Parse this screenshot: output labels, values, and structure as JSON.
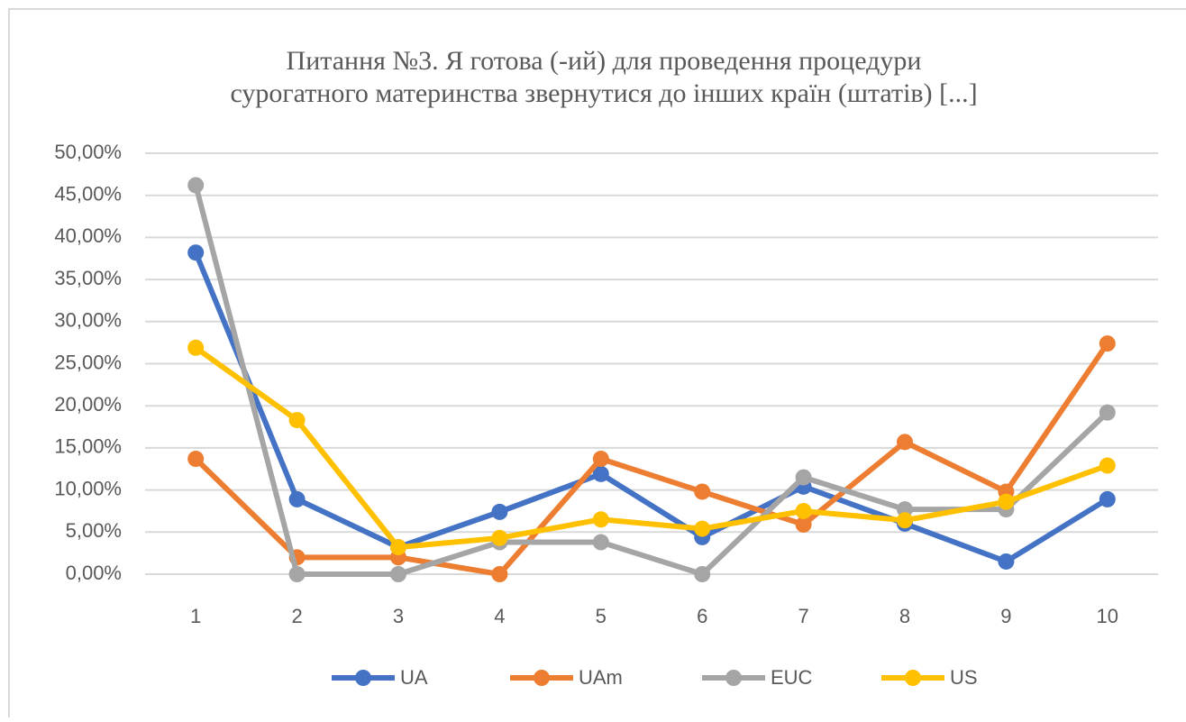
{
  "chart_data": {
    "type": "line",
    "title": [
      "Питання №3. Я готова (-ий) для проведення процедури",
      "сурогатного материнства звернутися до інших країн (штатів) [...]"
    ],
    "categories": [
      "1",
      "2",
      "3",
      "4",
      "5",
      "6",
      "7",
      "8",
      "9",
      "10"
    ],
    "series": [
      {
        "name": "UA",
        "color": "#4472c4",
        "values": [
          38.2,
          8.9,
          3.2,
          7.4,
          11.9,
          4.4,
          10.4,
          6.0,
          1.5,
          8.9
        ]
      },
      {
        "name": "UAm",
        "color": "#ed7d31",
        "values": [
          13.7,
          2.0,
          2.0,
          0,
          13.7,
          9.8,
          5.9,
          15.7,
          9.8,
          27.4
        ]
      },
      {
        "name": "EUC",
        "color": "#a5a5a5",
        "values": [
          46.2,
          0,
          0,
          3.8,
          3.8,
          0,
          11.5,
          7.7,
          7.7,
          19.2
        ]
      },
      {
        "name": "US",
        "color": "#ffc000",
        "values": [
          26.9,
          18.3,
          3.2,
          4.3,
          6.5,
          5.4,
          7.5,
          6.4,
          8.6,
          12.9
        ]
      }
    ],
    "ylim": [
      0,
      50
    ],
    "yticks": [
      {
        "value": 0,
        "label": "0,00%"
      },
      {
        "value": 5,
        "label": "5,00%"
      },
      {
        "value": 10,
        "label": "10,00%"
      },
      {
        "value": 15,
        "label": "15,00%"
      },
      {
        "value": 20,
        "label": "20,00%"
      },
      {
        "value": 25,
        "label": "25,00%"
      },
      {
        "value": 30,
        "label": "30,00%"
      },
      {
        "value": 35,
        "label": "35,00%"
      },
      {
        "value": 40,
        "label": "40,00%"
      },
      {
        "value": 45,
        "label": "45,00%"
      },
      {
        "value": 50,
        "label": "50,00%"
      }
    ],
    "grid": true,
    "legend": "bottom"
  }
}
